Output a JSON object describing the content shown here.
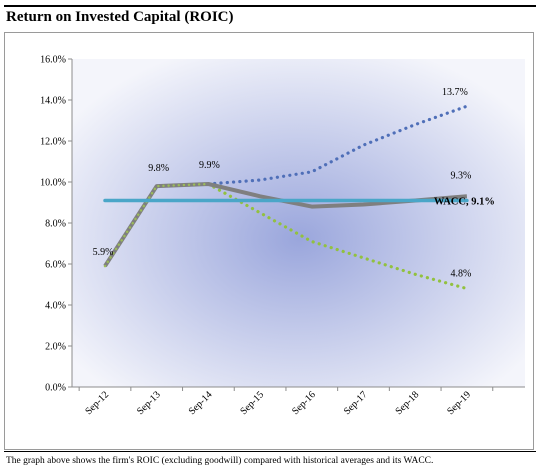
{
  "title": "Return on Invested Capital (ROIC)",
  "caption": "The graph above shows the firm's ROIC (excluding goodwill) compared with historical averages and its WACC.",
  "colors": {
    "roic_actual": "#7f7f7f",
    "roic_actual_outline": "#9bbb59",
    "projection_high": "#4f6fb8",
    "projection_low": "#92c13f",
    "wacc": "#4aa6c8",
    "plot_background_center": "#9aa6dc",
    "plot_background_edge": "#f4f5fb"
  },
  "chart_data": {
    "type": "line",
    "categories": [
      "Sep-12",
      "Sep-13",
      "Sep-14",
      "Sep-15",
      "Sep-16",
      "Sep-17",
      "Sep-18",
      "Sep-19"
    ],
    "ylim": [
      0,
      16
    ],
    "yticks": [
      0,
      2,
      4,
      6,
      8,
      10,
      12,
      14,
      16
    ],
    "ytick_labels": [
      "0.0%",
      "2.0%",
      "4.0%",
      "6.0%",
      "8.0%",
      "10.0%",
      "12.0%",
      "14.0%",
      "16.0%"
    ],
    "series": [
      {
        "key": "roic",
        "style": "solid",
        "values": [
          5.9,
          9.8,
          9.9,
          9.3,
          8.8,
          8.9,
          9.1,
          9.3
        ]
      },
      {
        "key": "high",
        "style": "dotted",
        "values": [
          null,
          null,
          9.9,
          10.1,
          10.5,
          11.8,
          12.8,
          13.7
        ]
      },
      {
        "key": "low",
        "style": "dotted",
        "values": [
          5.9,
          9.8,
          9.9,
          8.5,
          7.1,
          6.3,
          5.5,
          4.8
        ]
      },
      {
        "key": "wacc",
        "style": "solid",
        "values": [
          9.1,
          9.1,
          9.1,
          9.1,
          9.1,
          9.1,
          9.1,
          9.1
        ]
      }
    ],
    "annotations": [
      {
        "text": "5.9%",
        "x": "Sep-12",
        "y": 5.9
      },
      {
        "text": "9.8%",
        "x": "Sep-13",
        "y": 9.8
      },
      {
        "text": "9.9%",
        "x": "Sep-14",
        "y": 9.9
      },
      {
        "text": "13.7%",
        "x": "Sep-19",
        "y": 13.7
      },
      {
        "text": "9.3%",
        "x": "Sep-19",
        "y": 9.3
      },
      {
        "text": "4.8%",
        "x": "Sep-19",
        "y": 4.8
      },
      {
        "text": "WACC, 9.1%",
        "x": "Sep-19",
        "y": 9.1
      }
    ],
    "grid": false,
    "legend": "none"
  }
}
